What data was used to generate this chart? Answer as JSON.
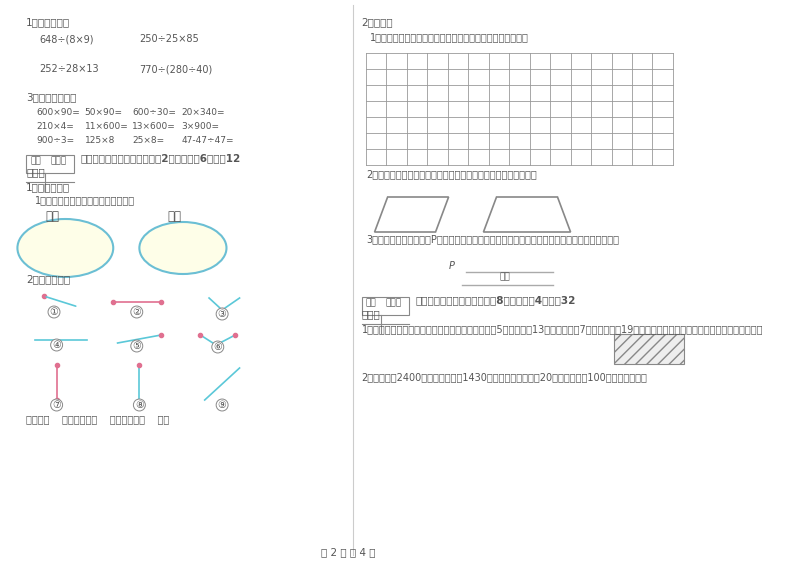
{
  "bg_color": "#ffffff",
  "text_color": "#555555",
  "title_bottom": "第 2 页 共 4 页",
  "left_col": {
    "section1_title": "1．竖式计算。",
    "s1_items": [
      "648÷(8×9)",
      "250÷25×85",
      "252÷28×13",
      "770÷(280÷40)"
    ],
    "section2_title": "3．直接写得数。",
    "s2_rows": [
      [
        "600×90=",
        "50×90=",
        "600÷30=",
        "20×340="
      ],
      [
        "210×4=",
        "11×600=",
        "13×600=",
        "3×900="
      ],
      [
        "900÷3=",
        "125×8",
        "25×8=",
        "47-47÷47="
      ]
    ],
    "score_box_labels": [
      "得分",
      "评卷人"
    ],
    "section3_title": "五、认真思考，综合能力（共2小题，每题6分，共12",
    "section3_cont": "分）。",
    "sub1_title": "1．综合训练。",
    "sub1_1": "1．把下面各角度数填入相应的圆里。",
    "angle_labels": [
      "锐角",
      "钝角"
    ],
    "sub2_title": "2．看图填空。",
    "line_labels": [
      "直线有（    ），射线有（    ），线段有（    ）。"
    ]
  },
  "right_col": {
    "section1_title": "2．作图。",
    "s1_1": "1．在下面的方格纸中分别画一个等腰梯形和一个直角梯形。",
    "grid_rows": 7,
    "grid_cols": 15,
    "s1_2": "2．在下图中，各画一条线段，把它分成一个三角形和一个梯形。",
    "s1_3": "3．河岸上有一个喷水口P，从小河中接一根水管到喷水口，怎样接最省材料？（在图中画出来）",
    "score_box_labels": [
      "得分",
      "评卷人"
    ],
    "section2_title": "六、应用知识，解决问题（共8小题，每题4分，共32",
    "section2_cont": "分）。",
    "sub1": "1．张大爷在小河边围了一块梯形菜地，菜地上底长5米，下底长13米，两腰各长7米，他只用了19米长的篱笆，你知道他是怎么围的吗？请你画一画",
    "sub2": "2．粮店原有2400千克大米，卖出1430千克后，现在又运进20袋，平均每袋100千克，粮店现有"
  }
}
